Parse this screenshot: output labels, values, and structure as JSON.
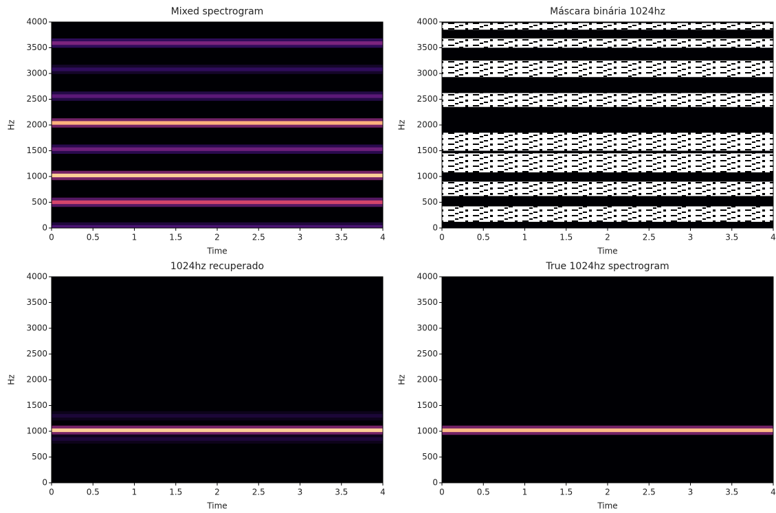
{
  "chart_data": [
    {
      "type": "spectrogram",
      "title": "Mixed spectrogram",
      "xlabel": "Time",
      "ylabel": "Hz",
      "xlim": [
        0,
        4
      ],
      "ylim": [
        0,
        4000
      ],
      "xticks": [
        0,
        0.5,
        1,
        1.5,
        2,
        2.5,
        3,
        3.5,
        4
      ],
      "yticks": [
        0,
        500,
        1000,
        1500,
        2000,
        2500,
        3000,
        3500,
        4000
      ],
      "bands": [
        {
          "freq": 3590,
          "level": 0.45
        },
        {
          "freq": 3080,
          "level": 0.2
        },
        {
          "freq": 2560,
          "level": 0.35
        },
        {
          "freq": 2040,
          "level": 0.92
        },
        {
          "freq": 1530,
          "level": 0.4
        },
        {
          "freq": 1020,
          "level": 0.95
        },
        {
          "freq": 500,
          "level": 0.72
        },
        {
          "freq": 20,
          "level": 0.3
        }
      ]
    },
    {
      "type": "mask",
      "title": "Máscara binária 1024hz",
      "xlabel": "Time",
      "ylabel": "Hz",
      "xlim": [
        0,
        4
      ],
      "ylim": [
        0,
        4000
      ],
      "xticks": [
        0,
        0.5,
        1,
        1.5,
        2,
        2.5,
        3,
        3.5,
        4
      ],
      "yticks": [
        0,
        500,
        1000,
        1500,
        2000,
        2500,
        3000,
        3500,
        4000
      ],
      "regions": [
        {
          "low": 3850,
          "high": 3980
        },
        {
          "low": 3500,
          "high": 3680
        },
        {
          "low": 2930,
          "high": 3250
        },
        {
          "low": 2350,
          "high": 2620
        },
        {
          "low": 1500,
          "high": 1850
        },
        {
          "low": 1080,
          "high": 1450
        },
        {
          "low": 620,
          "high": 900
        },
        {
          "low": 120,
          "high": 420
        }
      ]
    },
    {
      "type": "spectrogram",
      "title": "1024hz recuperado",
      "xlabel": "Time",
      "ylabel": "Hz",
      "xlim": [
        0,
        4
      ],
      "ylim": [
        0,
        4000
      ],
      "xticks": [
        0,
        0.5,
        1,
        1.5,
        2,
        2.5,
        3,
        3.5,
        4
      ],
      "yticks": [
        0,
        500,
        1000,
        1500,
        2000,
        2500,
        3000,
        3500,
        4000
      ],
      "bands": [
        {
          "freq": 1300,
          "level": 0.12
        },
        {
          "freq": 1020,
          "level": 0.95
        },
        {
          "freq": 850,
          "level": 0.12
        }
      ]
    },
    {
      "type": "spectrogram",
      "title": "True 1024hz spectrogram",
      "xlabel": "Time",
      "ylabel": "Hz",
      "xlim": [
        0,
        4
      ],
      "ylim": [
        0,
        4000
      ],
      "xticks": [
        0,
        0.5,
        1,
        1.5,
        2,
        2.5,
        3,
        3.5,
        4
      ],
      "yticks": [
        0,
        500,
        1000,
        1500,
        2000,
        2500,
        3000,
        3500,
        4000
      ],
      "bands": [
        {
          "freq": 1020,
          "level": 0.93
        }
      ]
    }
  ]
}
